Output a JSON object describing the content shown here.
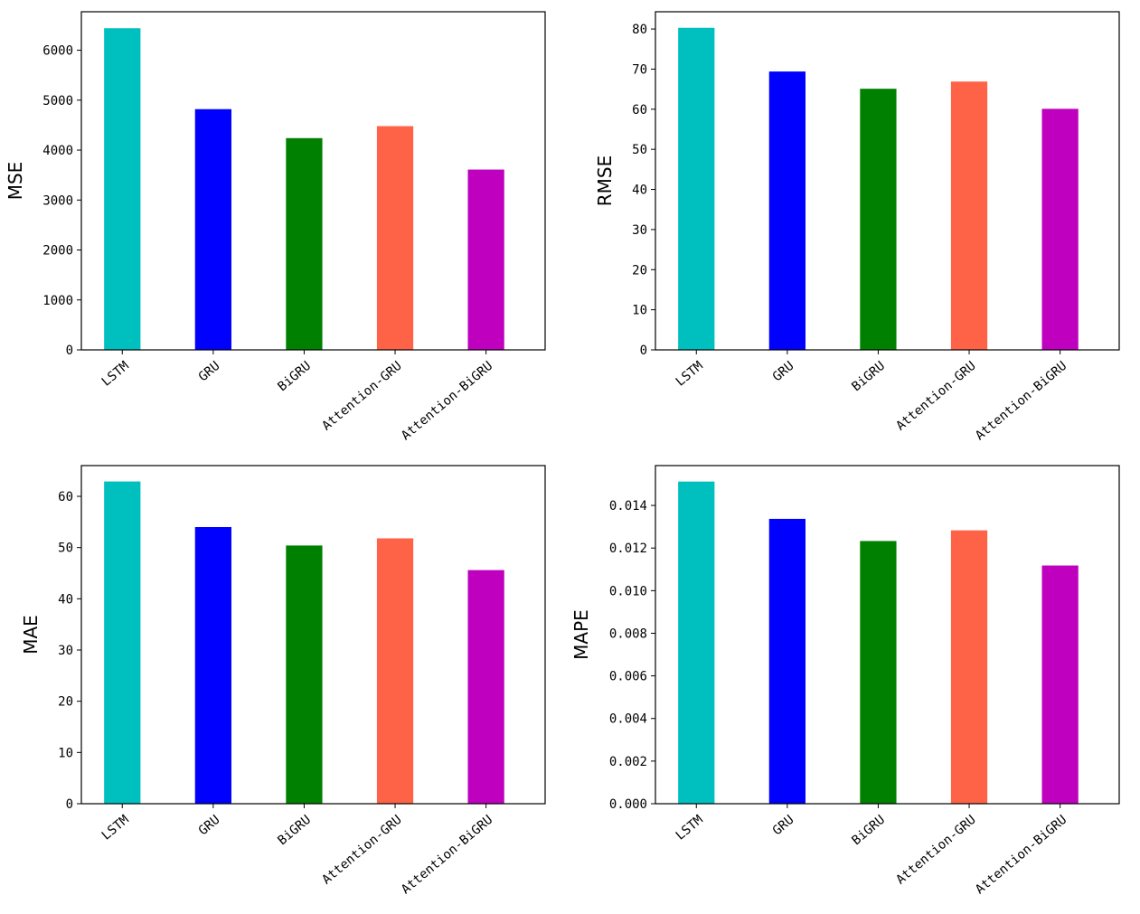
{
  "chart_data": [
    {
      "type": "bar",
      "title": "",
      "xlabel": "",
      "ylabel": "MSE",
      "categories": [
        "LSTM",
        "GRU",
        "BiGRU",
        "Attention-GRU",
        "Attention-BiGRU"
      ],
      "values": [
        6440,
        4820,
        4240,
        4480,
        3610
      ],
      "colors": [
        "#00bfbf",
        "#0000ff",
        "#008000",
        "#ff6347",
        "#bf00bf"
      ],
      "ylim": [
        0,
        6770
      ],
      "yticks": [
        0,
        1000,
        2000,
        3000,
        4000,
        5000,
        6000
      ],
      "ytick_labels": [
        "0",
        "1000",
        "2000",
        "3000",
        "4000",
        "5000",
        "6000"
      ],
      "grid": false
    },
    {
      "type": "bar",
      "title": "",
      "xlabel": "",
      "ylabel": "RMSE",
      "categories": [
        "LSTM",
        "GRU",
        "BiGRU",
        "Attention-GRU",
        "Attention-BiGRU"
      ],
      "values": [
        80.3,
        69.4,
        65.1,
        66.9,
        60.1
      ],
      "colors": [
        "#00bfbf",
        "#0000ff",
        "#008000",
        "#ff6347",
        "#bf00bf"
      ],
      "ylim": [
        0,
        84.3
      ],
      "yticks": [
        0,
        10,
        20,
        30,
        40,
        50,
        60,
        70,
        80
      ],
      "ytick_labels": [
        "0",
        "10",
        "20",
        "30",
        "40",
        "50",
        "60",
        "70",
        "80"
      ],
      "grid": false
    },
    {
      "type": "bar",
      "title": "",
      "xlabel": "",
      "ylabel": "MAE",
      "categories": [
        "LSTM",
        "GRU",
        "BiGRU",
        "Attention-GRU",
        "Attention-BiGRU"
      ],
      "values": [
        62.9,
        54.0,
        50.4,
        51.8,
        45.6
      ],
      "colors": [
        "#00bfbf",
        "#0000ff",
        "#008000",
        "#ff6347",
        "#bf00bf"
      ],
      "ylim": [
        0,
        66.0
      ],
      "yticks": [
        0,
        10,
        20,
        30,
        40,
        50,
        60
      ],
      "ytick_labels": [
        "0",
        "10",
        "20",
        "30",
        "40",
        "50",
        "60"
      ],
      "grid": false
    },
    {
      "type": "bar",
      "title": "",
      "xlabel": "",
      "ylabel": "MAPE",
      "categories": [
        "LSTM",
        "GRU",
        "BiGRU",
        "Attention-GRU",
        "Attention-BiGRU"
      ],
      "values": [
        0.01512,
        0.01337,
        0.01233,
        0.01283,
        0.01118
      ],
      "colors": [
        "#00bfbf",
        "#0000ff",
        "#008000",
        "#ff6347",
        "#bf00bf"
      ],
      "ylim": [
        0,
        0.01587
      ],
      "yticks": [
        0,
        0.002,
        0.004,
        0.006,
        0.008,
        0.01,
        0.012,
        0.014
      ],
      "ytick_labels": [
        "0.000",
        "0.002",
        "0.004",
        "0.006",
        "0.008",
        "0.010",
        "0.012",
        "0.014"
      ],
      "grid": false
    }
  ]
}
